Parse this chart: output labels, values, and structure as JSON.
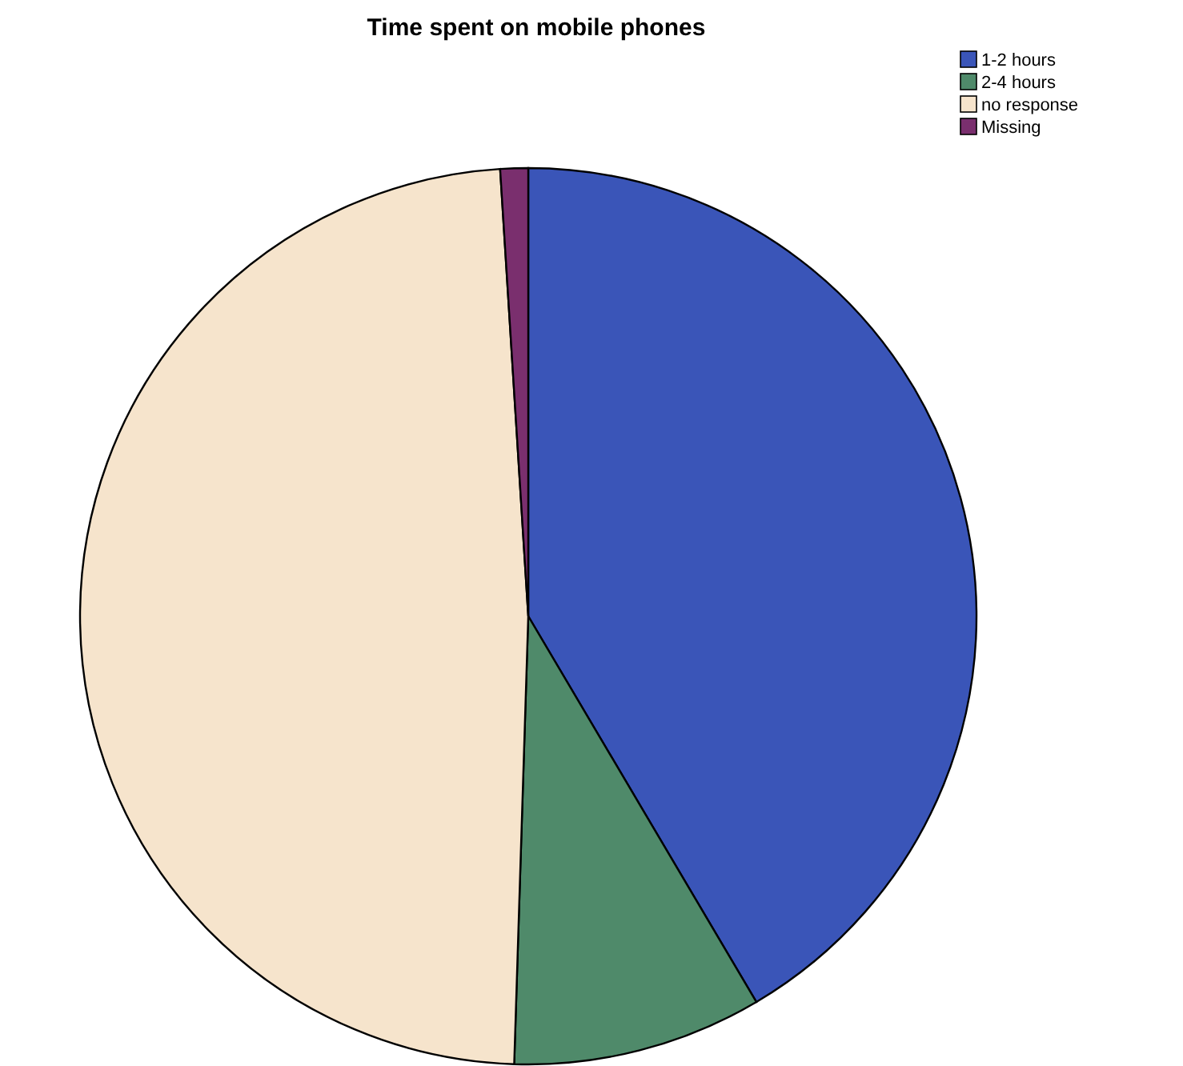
{
  "chart_data": {
    "type": "pie",
    "title": "Time spent on mobile phones",
    "categories": [
      "1-2 hours",
      "2-4 hours",
      "no response",
      "Missing"
    ],
    "values": [
      41.5,
      9,
      48.5,
      1
    ],
    "colors": [
      "#3a55b8",
      "#4f8a6a",
      "#f6e4cc",
      "#7a2f6e"
    ],
    "legend": "top right"
  }
}
